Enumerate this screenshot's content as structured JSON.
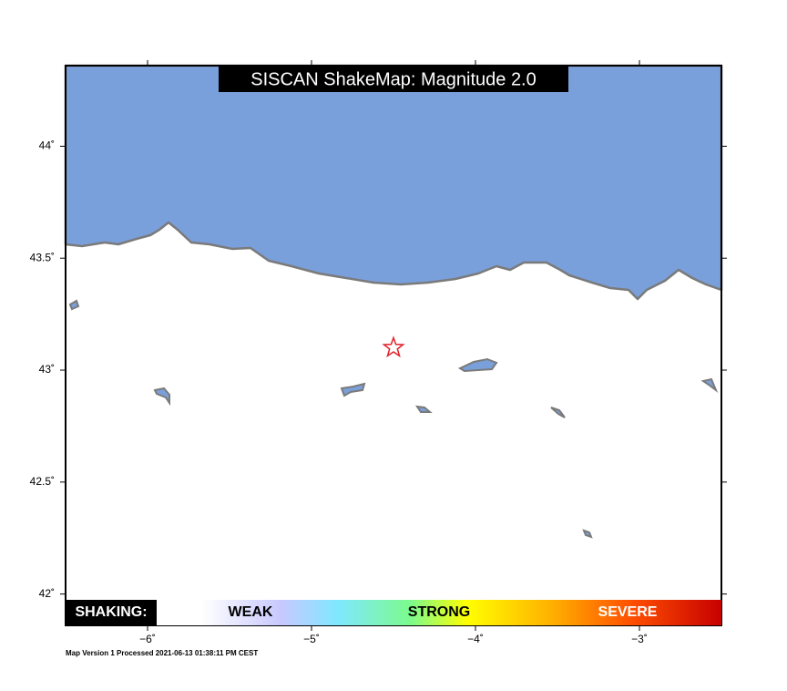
{
  "map": {
    "title": "SISCAN ShakeMap: Magnitude 2.0",
    "lon_range": [
      -6.5,
      -2.5
    ],
    "lat_range": [
      41.86,
      44.36
    ],
    "lat_ticks": [
      {
        "value": 44,
        "label": "44˚"
      },
      {
        "value": 43.5,
        "label": "43.5˚"
      },
      {
        "value": 43,
        "label": "43˚"
      },
      {
        "value": 42.5,
        "label": "42.5˚"
      },
      {
        "value": 42,
        "label": "42˚"
      }
    ],
    "lon_ticks": [
      {
        "value": -6,
        "label": "−6˚"
      },
      {
        "value": -5,
        "label": "−5˚"
      },
      {
        "value": -4,
        "label": "−4˚"
      },
      {
        "value": -3,
        "label": "−3˚"
      }
    ],
    "epicenter": {
      "lon": -4.5,
      "lat": 43.1
    },
    "legend": {
      "title": "SHAKING:",
      "labels": [
        "WEAK",
        "STRONG",
        "SEVERE"
      ]
    },
    "footer": "Map Version 1 Processed 2021-06-13 01:38:11 PM CEST"
  }
}
